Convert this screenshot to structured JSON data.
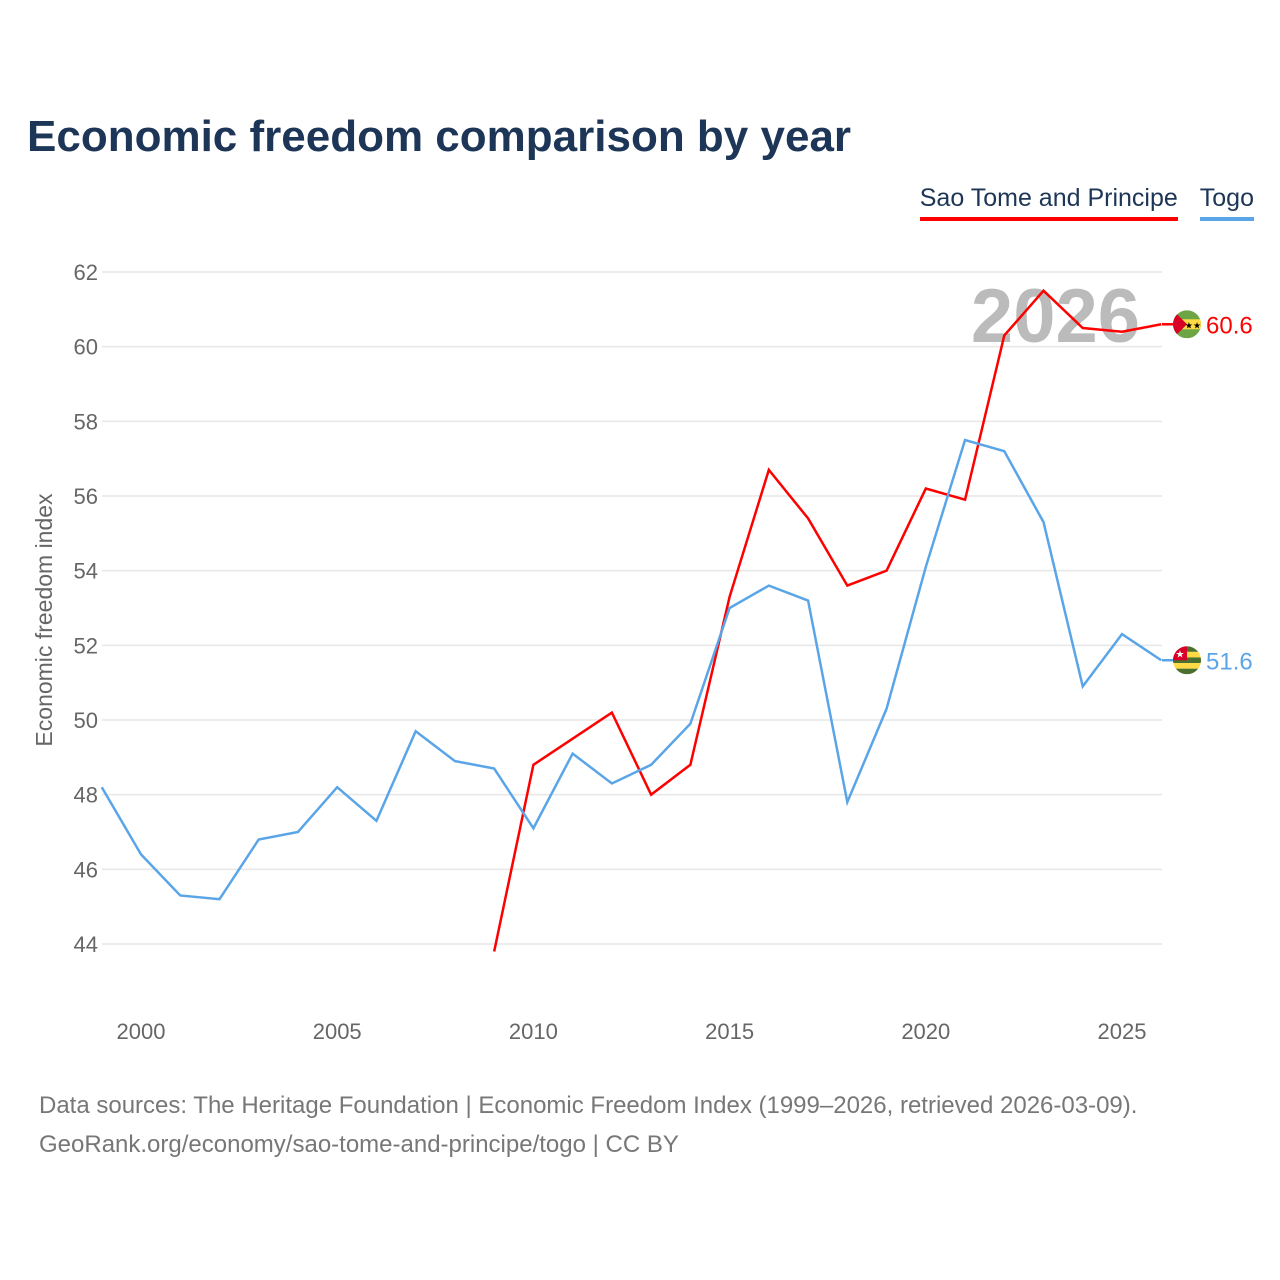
{
  "title": "Economic freedom comparison by year",
  "footer": {
    "line1": "Data sources: The Heritage Foundation | Economic Freedom Index (1999–2026, retrieved 2026-03-09).",
    "line2": "GeoRank.org/economy/sao-tome-and-principe/togo | CC BY"
  },
  "chart_data": {
    "type": "line",
    "title": "Economic freedom comparison by year",
    "xlabel": "",
    "ylabel": "Economic freedom index",
    "watermark_year": "2026",
    "xlim": [
      1999,
      2026
    ],
    "ylim": [
      42.8,
      63
    ],
    "yticks": [
      44,
      46,
      48,
      50,
      52,
      54,
      56,
      58,
      60,
      62
    ],
    "xticks": [
      2000,
      2005,
      2010,
      2015,
      2020,
      2025
    ],
    "grid": true,
    "legend_position": "top-right",
    "series": [
      {
        "name": "Sao Tome and Principe",
        "color": "#ff0000",
        "end_label": "60.6",
        "flag": "sao-tome-and-principe-flag",
        "x": [
          2009,
          2010,
          2011,
          2012,
          2013,
          2014,
          2015,
          2016,
          2017,
          2018,
          2019,
          2020,
          2021,
          2022,
          2023,
          2024,
          2025,
          2026
        ],
        "values": [
          43.8,
          48.8,
          49.5,
          50.2,
          48.0,
          48.8,
          53.3,
          56.7,
          55.4,
          53.6,
          54.0,
          56.2,
          55.9,
          60.3,
          61.5,
          60.5,
          60.4,
          60.6
        ]
      },
      {
        "name": "Togo",
        "color": "#5aa5e8",
        "end_label": "51.6",
        "flag": "togo-flag",
        "x": [
          1999,
          2000,
          2001,
          2002,
          2003,
          2004,
          2005,
          2006,
          2007,
          2008,
          2009,
          2010,
          2011,
          2012,
          2013,
          2014,
          2015,
          2016,
          2017,
          2018,
          2019,
          2020,
          2021,
          2022,
          2023,
          2024,
          2025,
          2026
        ],
        "values": [
          48.2,
          46.4,
          45.3,
          45.2,
          46.8,
          47.0,
          48.2,
          47.3,
          49.7,
          48.9,
          48.7,
          47.1,
          49.1,
          48.3,
          48.8,
          49.9,
          53.0,
          53.6,
          53.2,
          47.8,
          50.3,
          54.1,
          57.5,
          57.2,
          55.3,
          50.9,
          52.3,
          51.6
        ]
      }
    ]
  }
}
